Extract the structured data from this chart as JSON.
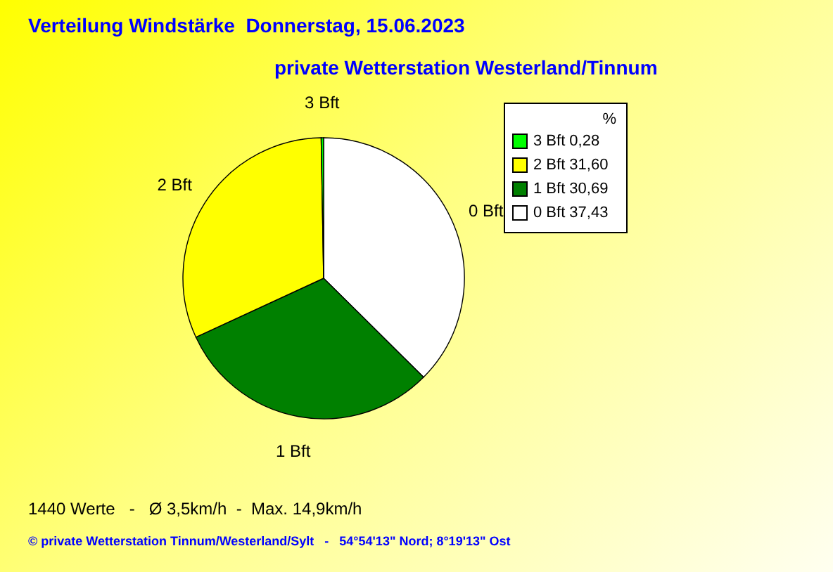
{
  "chart_data": {
    "type": "pie",
    "title": "Verteilung Windstärke  Donnerstag, 15.06.2023",
    "subtitle": "private Wetterstation Westerland/Tinnum",
    "legend_title": "%",
    "legend": "top right",
    "categories": [
      "0 Bft",
      "1 Bft",
      "2 Bft",
      "3 Bft"
    ],
    "values": [
      37.43,
      30.69,
      31.6,
      0.28
    ],
    "colors": [
      "#ffffff",
      "#008000",
      "#ffff00",
      "#00ff00"
    ],
    "value_labels": [
      "37,43",
      "30,69",
      "31,60",
      "0,28"
    ],
    "annotations": [
      "1440 Werte   -   Ø 3,5km/h  -  Max. 14,9km/h",
      "© private Wetterstation Tinnum/Westerland/Sylt   -   54°54'13\" Nord; 8°19'13\" Ost"
    ]
  }
}
